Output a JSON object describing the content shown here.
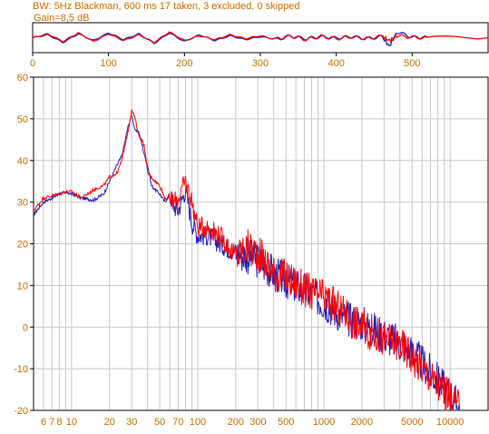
{
  "header": {
    "status_text": "BW: 5Hz Blackman, 600 ms 17 taken, 3 excluded, 0 skipped",
    "gain_label": "Gain=8,5 dB"
  },
  "colors": {
    "text": "#c46a00",
    "axis_text": "#c46a00",
    "grid": "#c8c8c8",
    "frame": "#000000",
    "series_blue": "#1f1fb3",
    "series_red": "#ff0000",
    "background": "#ffffff"
  },
  "chart_data": [
    {
      "type": "line",
      "id": "time-waveform",
      "xlim": [
        0,
        600
      ],
      "xticks": [
        0,
        100,
        200,
        300,
        400,
        500
      ],
      "xtick_labels": [
        "0",
        "100",
        "200",
        "300",
        "400",
        "500"
      ],
      "ylim": [
        -1,
        1
      ],
      "grid": false,
      "series": [
        {
          "color": "#1f1fb3",
          "x": [
            0,
            20,
            40,
            60,
            80,
            100,
            120,
            140,
            160,
            180,
            200,
            220,
            240,
            260,
            280,
            300,
            320,
            340,
            360,
            380,
            400,
            420,
            440,
            460,
            470,
            480,
            500,
            520
          ],
          "y": [
            0,
            0.3,
            -0.5,
            0.4,
            -0.3,
            0.5,
            -0.2,
            0.4,
            -0.6,
            0.5,
            -0.4,
            0.3,
            -0.3,
            0.2,
            -0.2,
            0.1,
            -0.15,
            0.15,
            -0.1,
            0.1,
            -0.05,
            0.1,
            -0.1,
            0.1,
            -0.9,
            0.6,
            0.05,
            0
          ]
        },
        {
          "color": "#ff0000",
          "x": [
            0,
            20,
            40,
            60,
            80,
            100,
            120,
            140,
            160,
            180,
            200,
            220,
            240,
            260,
            280,
            300,
            320,
            340,
            360,
            380,
            400,
            420,
            440,
            460,
            470,
            480,
            500,
            520,
            600
          ],
          "y": [
            0,
            0.4,
            -0.4,
            0.5,
            -0.4,
            0.4,
            -0.3,
            0.3,
            -0.5,
            0.6,
            -0.3,
            0.2,
            -0.2,
            0.3,
            -0.1,
            0.2,
            -0.2,
            0.2,
            -0.2,
            0.15,
            -0.1,
            0.1,
            -0.1,
            0.15,
            -0.3,
            0.2,
            0.05,
            0,
            0
          ]
        }
      ]
    },
    {
      "type": "line",
      "id": "frequency-response",
      "xscale": "log",
      "xlim": [
        5,
        20000
      ],
      "xticks": [
        6,
        7,
        8,
        10,
        20,
        30,
        50,
        70,
        100,
        200,
        300,
        500,
        1000,
        2000,
        5000,
        10000
      ],
      "xtick_labels": [
        "6",
        "7",
        "8",
        "10",
        "20",
        "30",
        "50",
        "70",
        "100",
        "200",
        "300",
        "500",
        "1000",
        "2000",
        "5000",
        "10000"
      ],
      "ylim": [
        -20,
        60
      ],
      "yticks": [
        60,
        50,
        40,
        30,
        20,
        10,
        0,
        -10,
        -20
      ],
      "ytick_labels": [
        "60",
        "50",
        "40",
        "30",
        "20",
        "10",
        "0",
        "-10",
        "-20"
      ],
      "grid": true,
      "series": [
        {
          "color": "#1f1fb3",
          "x": [
            5,
            6,
            7,
            8,
            9,
            10,
            12,
            15,
            18,
            20,
            23,
            25,
            28,
            30,
            32,
            34,
            36,
            38,
            40,
            43,
            46,
            50,
            55,
            60,
            65,
            70,
            80,
            90,
            100,
            120,
            150,
            200,
            250,
            300,
            400,
            500,
            700,
            1000,
            1500,
            2000,
            3000,
            4000,
            5000,
            7000,
            10000,
            12000
          ],
          "y": [
            27,
            30,
            31,
            32,
            32.3,
            32,
            31,
            30.5,
            32,
            35,
            39,
            41,
            48,
            51,
            47,
            47,
            44,
            41,
            39,
            34,
            33,
            32,
            30,
            32,
            29,
            28,
            33,
            25,
            22,
            22,
            20,
            18,
            17,
            16,
            13,
            11,
            9,
            6,
            2,
            1,
            -2,
            -4,
            -6,
            -11,
            -16,
            -20
          ]
        },
        {
          "color": "#ff0000",
          "x": [
            5,
            6,
            7,
            8,
            9,
            10,
            12,
            15,
            18,
            20,
            23,
            25,
            28,
            30,
            32,
            34,
            36,
            38,
            40,
            43,
            46,
            50,
            55,
            60,
            65,
            70,
            80,
            90,
            100,
            120,
            150,
            200,
            250,
            300,
            400,
            500,
            700,
            1000,
            1500,
            2000,
            3000,
            4000,
            5000,
            7000,
            10000,
            12000
          ],
          "y": [
            28,
            31,
            31.5,
            32,
            32.5,
            32.5,
            31,
            33,
            34,
            36,
            37,
            40,
            47,
            52,
            50,
            46,
            45,
            43,
            37,
            36,
            35,
            34,
            31,
            31,
            30,
            31,
            35,
            30,
            24,
            24,
            22,
            17,
            19,
            18,
            13,
            12,
            9,
            7,
            3,
            0,
            -3,
            -4,
            -7,
            -12,
            -17,
            -20
          ]
        }
      ]
    }
  ]
}
